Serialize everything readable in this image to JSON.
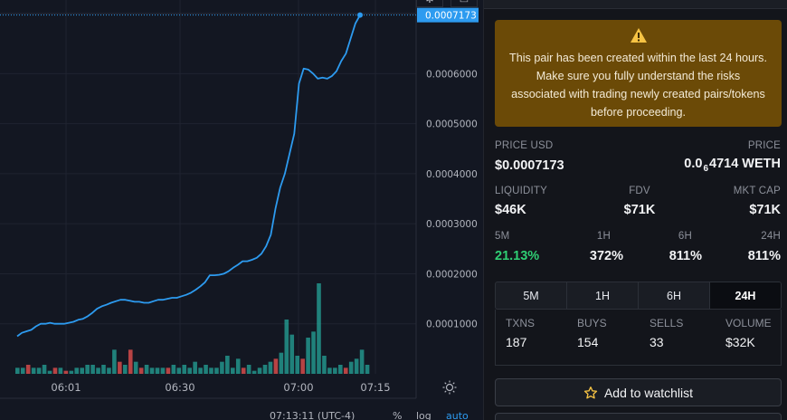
{
  "chart": {
    "last_price_label": "0.0007173",
    "status": {
      "time": "07:13:11 (UTC-4)",
      "percent": "%",
      "log": "log",
      "auto": "auto"
    },
    "colors": {
      "bg": "#131722",
      "grid": "#1f2330",
      "line": "#2d9bf0",
      "up": "#26a69a",
      "down": "#ef5350"
    }
  },
  "chart_data": {
    "type": "line",
    "title": "",
    "xlabel": "",
    "ylabel": "",
    "x_ticks": [
      "06:01",
      "06:30",
      "07:00",
      "07:15"
    ],
    "y_ticks": [
      "0.0001000",
      "0.0002000",
      "0.0003000",
      "0.0004000",
      "0.0005000",
      "0.0006000"
    ],
    "ylim": [
      0.0,
      0.00072
    ],
    "series": [
      {
        "values": [
          7.5e-05,
          8.2e-05,
          8.5e-05,
          8.8e-05,
          9.5e-05,
          0.0001,
          0.0001,
          0.000102,
          0.0001,
          0.0001,
          0.0001,
          0.000102,
          0.000104,
          0.000108,
          0.00011,
          0.000115,
          0.000122,
          0.00013,
          0.000135,
          0.000138,
          0.000142,
          0.000145,
          0.000148,
          0.000148,
          0.000146,
          0.000144,
          0.000144,
          0.000142,
          0.000142,
          0.000145,
          0.000148,
          0.000148,
          0.00015,
          0.000152,
          0.000152,
          0.000155,
          0.000158,
          0.000162,
          0.000168,
          0.000175,
          0.000183,
          0.000197,
          0.000197,
          0.000198,
          0.0002,
          0.000205,
          0.000212,
          0.000218,
          0.000225,
          0.000225,
          0.000228,
          0.000232,
          0.00024,
          0.000255,
          0.000278,
          0.00033,
          0.000372,
          0.0004,
          0.00044,
          0.00048,
          0.00058,
          0.00061,
          0.000608,
          0.0006,
          0.00059,
          0.000592,
          0.00059,
          0.000595,
          0.000605,
          0.000625,
          0.00064,
          0.00067,
          0.0007,
          0.000717
        ]
      }
    ],
    "volume_bars": [
      2,
      2,
      3,
      2,
      2,
      3,
      1,
      2,
      2,
      1,
      1,
      2,
      2,
      3,
      3,
      2,
      3,
      2,
      8,
      4,
      3,
      8,
      4,
      2,
      3,
      2,
      2,
      2,
      2,
      3,
      2,
      3,
      2,
      4,
      2,
      3,
      2,
      2,
      4,
      6,
      2,
      5,
      2,
      3,
      1,
      2,
      3,
      4,
      5,
      7,
      18,
      13,
      6,
      5,
      12,
      14,
      30,
      6,
      2,
      2,
      3,
      2,
      4,
      5,
      8,
      3
    ],
    "volume_colors": [
      "u",
      "u",
      "d",
      "u",
      "u",
      "u",
      "u",
      "d",
      "u",
      "d",
      "u",
      "u",
      "u",
      "u",
      "u",
      "u",
      "u",
      "u",
      "u",
      "d",
      "u",
      "d",
      "u",
      "d",
      "u",
      "u",
      "u",
      "u",
      "d",
      "u",
      "u",
      "u",
      "u",
      "u",
      "u",
      "u",
      "u",
      "u",
      "u",
      "u",
      "u",
      "u",
      "d",
      "u",
      "u",
      "u",
      "u",
      "u",
      "d",
      "u",
      "u",
      "u",
      "u",
      "d",
      "u",
      "u",
      "u",
      "u",
      "u",
      "u",
      "u",
      "d",
      "u",
      "u",
      "u",
      "u"
    ]
  },
  "info": {
    "warning": "This pair has been created within the last 24 hours. Make sure you fully understand the risks associated with trading newly created pairs/tokens before proceeding.",
    "price_usd_label": "PRICE USD",
    "price_usd": "$0.0007173",
    "price_label": "PRICE",
    "price_native_prefix": "0.0",
    "price_native_sub": "6",
    "price_native_rest": "4714 WETH",
    "liquidity_label": "LIQUIDITY",
    "liquidity": "$46K",
    "fdv_label": "FDV",
    "fdv": "$71K",
    "mktcap_label": "MKT CAP",
    "mktcap": "$71K",
    "changes": [
      {
        "label": "5M",
        "value": "21.13%"
      },
      {
        "label": "1H",
        "value": "372%"
      },
      {
        "label": "6H",
        "value": "811%"
      },
      {
        "label": "24H",
        "value": "811%"
      }
    ],
    "timeframes": [
      "5M",
      "1H",
      "6H",
      "24H"
    ],
    "txns": [
      {
        "label": "TXNS",
        "value": "187"
      },
      {
        "label": "BUYS",
        "value": "154"
      },
      {
        "label": "SELLS",
        "value": "33"
      },
      {
        "label": "VOLUME",
        "value": "$32K"
      }
    ],
    "watchlist_label": "Add to watchlist",
    "colors": {
      "warning_bg": "#6b4a07",
      "positive": "#2fcf74"
    }
  }
}
